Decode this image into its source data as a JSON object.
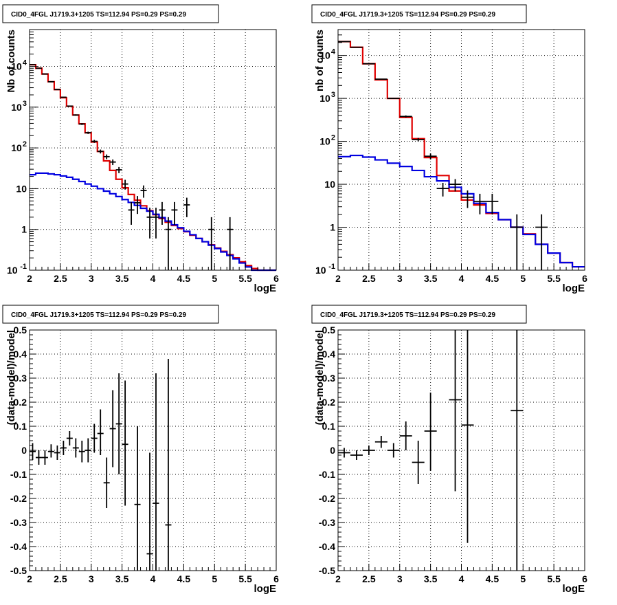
{
  "chart_data": [
    {
      "type": "line",
      "title": "CID0_4FGL J1719.3+1205 TS=112.94 PS=0.29 PS=0.29",
      "xlabel": "logE",
      "ylabel": "Nb of counts",
      "ylog": true,
      "xlim": [
        2,
        6
      ],
      "ylim": [
        0.1,
        80000
      ],
      "xticks": [
        "2",
        "2.5",
        "3",
        "3.5",
        "4",
        "4.5",
        "5",
        "5.5",
        "6"
      ],
      "yticks": [
        "10^-1",
        "1",
        "10",
        "10^2",
        "10^3",
        "10^4"
      ],
      "grid": true,
      "hist_edges": [
        2.0,
        2.1,
        2.2,
        2.3,
        2.4,
        2.5,
        2.6,
        2.7,
        2.8,
        2.9,
        3.0,
        3.1,
        3.2,
        3.3,
        3.4,
        3.5,
        3.6,
        3.7,
        3.8,
        3.9,
        4.0,
        4.1,
        4.2,
        4.3,
        4.4,
        4.5,
        4.6,
        4.7,
        4.8,
        4.9,
        5.0,
        5.1,
        5.2,
        5.3,
        5.4,
        5.5,
        5.6,
        5.7,
        5.8,
        5.9,
        6.0
      ],
      "series": [
        {
          "color": "#e00000",
          "values": [
            11000,
            9000,
            6500,
            4200,
            2700,
            1700,
            1050,
            640,
            390,
            235,
            140,
            82,
            48,
            28,
            17,
            10.5,
            7.2,
            5.2,
            3.8,
            2.9,
            2.3,
            1.85,
            1.5,
            1.25,
            1.05,
            0.88,
            0.72,
            0.6,
            0.5,
            0.42,
            0.35,
            0.29,
            0.24,
            0.2,
            0.16,
            0.13,
            0.11,
            0.1,
            0.1,
            0.1
          ]
        },
        {
          "color": "#0000e0",
          "values": [
            22,
            24,
            24,
            23,
            22,
            20.5,
            19,
            17,
            15,
            13,
            11.5,
            10,
            8.7,
            7.5,
            6.4,
            5.4,
            4.6,
            3.9,
            3.3,
            2.8,
            2.35,
            1.95,
            1.6,
            1.3,
            1.1,
            0.9,
            0.74,
            0.6,
            0.5,
            0.41,
            0.34,
            0.28,
            0.23,
            0.19,
            0.15,
            0.12,
            0.1,
            0.1,
            0.1,
            0.1
          ]
        }
      ],
      "points": [
        {
          "x": 2.05,
          "y": 11000,
          "ylo": 10900,
          "yhi": 11100
        },
        {
          "x": 2.15,
          "y": 9000,
          "ylo": 8900,
          "yhi": 9100
        },
        {
          "x": 2.25,
          "y": 6500,
          "ylo": 6400,
          "yhi": 6600
        },
        {
          "x": 2.35,
          "y": 4200,
          "ylo": 4130,
          "yhi": 4270
        },
        {
          "x": 2.45,
          "y": 2700,
          "ylo": 2650,
          "yhi": 2750
        },
        {
          "x": 2.55,
          "y": 1750,
          "ylo": 1710,
          "yhi": 1790
        },
        {
          "x": 2.65,
          "y": 1060,
          "ylo": 1030,
          "yhi": 1090
        },
        {
          "x": 2.75,
          "y": 640,
          "ylo": 615,
          "yhi": 665
        },
        {
          "x": 2.85,
          "y": 385,
          "ylo": 365,
          "yhi": 405
        },
        {
          "x": 2.95,
          "y": 235,
          "ylo": 220,
          "yhi": 250
        },
        {
          "x": 3.05,
          "y": 145,
          "ylo": 133,
          "yhi": 157
        },
        {
          "x": 3.15,
          "y": 82,
          "ylo": 73,
          "yhi": 91
        },
        {
          "x": 3.25,
          "y": 61,
          "ylo": 53,
          "yhi": 69
        },
        {
          "x": 3.35,
          "y": 45,
          "ylo": 38,
          "yhi": 52
        },
        {
          "x": 3.45,
          "y": 29,
          "ylo": 24,
          "yhi": 34
        },
        {
          "x": 3.55,
          "y": 13,
          "ylo": 9.5,
          "yhi": 16.5
        },
        {
          "x": 3.65,
          "y": 3,
          "ylo": 1.3,
          "yhi": 4.7
        },
        {
          "x": 3.75,
          "y": 4.5,
          "ylo": 2.4,
          "yhi": 6.6
        },
        {
          "x": 3.85,
          "y": 9,
          "ylo": 6,
          "yhi": 12
        },
        {
          "x": 3.95,
          "y": 2,
          "ylo": 0.6,
          "yhi": 3.4
        },
        {
          "x": 4.05,
          "y": 2,
          "ylo": 0.6,
          "yhi": 3.4
        },
        {
          "x": 4.15,
          "y": 3,
          "ylo": 1.3,
          "yhi": 4.7
        },
        {
          "x": 4.25,
          "y": 1,
          "ylo": 0.1,
          "yhi": 2
        },
        {
          "x": 4.35,
          "y": 3,
          "ylo": 1.3,
          "yhi": 4.7
        },
        {
          "x": 4.55,
          "y": 4,
          "ylo": 2,
          "yhi": 6
        },
        {
          "x": 4.95,
          "y": 1,
          "ylo": 0.1,
          "yhi": 2
        },
        {
          "x": 5.25,
          "y": 1,
          "ylo": 0.1,
          "yhi": 2
        }
      ]
    },
    {
      "type": "line",
      "title": "CID0_4FGL J1719.3+1205 TS=112.94 PS=0.29 PS=0.29",
      "xlabel": "logE",
      "ylabel": "nb of counts",
      "ylog": true,
      "xlim": [
        2,
        6
      ],
      "ylim": [
        0.1,
        40000
      ],
      "xticks": [
        "2",
        "2.5",
        "3",
        "3.5",
        "4",
        "4.5",
        "5",
        "5.5",
        "6"
      ],
      "yticks": [
        "10^-1",
        "1",
        "10",
        "10^2",
        "10^3",
        "10^4"
      ],
      "grid": true,
      "hist_edges": [
        2.0,
        2.2,
        2.4,
        2.6,
        2.8,
        3.0,
        3.2,
        3.4,
        3.6,
        3.8,
        4.0,
        4.2,
        4.4,
        4.6,
        4.8,
        5.0,
        5.2,
        5.4,
        5.6,
        5.8,
        6.0
      ],
      "series": [
        {
          "color": "#e00000",
          "values": [
            21000,
            15500,
            6400,
            2700,
            1000,
            360,
            115,
            42,
            16,
            7,
            4.3,
            3.3,
            2.1,
            1.5,
            1,
            0.7,
            0.4,
            0.25,
            0.15,
            0.12
          ]
        },
        {
          "color": "#0000e0",
          "values": [
            44,
            47,
            43,
            37,
            31,
            26,
            21,
            15,
            12,
            8.5,
            6,
            3.6,
            2.2,
            1.5,
            1,
            0.68,
            0.4,
            0.25,
            0.15,
            0.12
          ]
        }
      ],
      "points": [
        {
          "x": 2.1,
          "y": 21000,
          "ylo": 20860,
          "yhi": 21140
        },
        {
          "x": 2.3,
          "y": 15500,
          "ylo": 15380,
          "yhi": 15620
        },
        {
          "x": 2.5,
          "y": 6400,
          "ylo": 6320,
          "yhi": 6480
        },
        {
          "x": 2.7,
          "y": 2800,
          "ylo": 2750,
          "yhi": 2850
        },
        {
          "x": 2.9,
          "y": 1000,
          "ylo": 970,
          "yhi": 1030
        },
        {
          "x": 3.1,
          "y": 380,
          "ylo": 360,
          "yhi": 400
        },
        {
          "x": 3.3,
          "y": 110,
          "ylo": 100,
          "yhi": 120
        },
        {
          "x": 3.5,
          "y": 45,
          "ylo": 38,
          "yhi": 52
        },
        {
          "x": 3.7,
          "y": 8,
          "ylo": 5.2,
          "yhi": 10.8
        },
        {
          "x": 3.9,
          "y": 10,
          "ylo": 6.8,
          "yhi": 13.2
        },
        {
          "x": 4.1,
          "y": 5,
          "ylo": 2.8,
          "yhi": 7.2
        },
        {
          "x": 4.3,
          "y": 4,
          "ylo": 2,
          "yhi": 6
        },
        {
          "x": 4.5,
          "y": 4,
          "ylo": 2,
          "yhi": 6
        },
        {
          "x": 4.9,
          "y": 1,
          "ylo": 0.1,
          "yhi": 2
        },
        {
          "x": 5.3,
          "y": 1,
          "ylo": 0.1,
          "yhi": 2
        }
      ]
    },
    {
      "type": "scatter",
      "title": "CID0_4FGL J1719.3+1205 TS=112.94 PS=0.29 PS=0.29",
      "xlabel": "logE",
      "ylabel": "(data-model)/model",
      "ylog": false,
      "xlim": [
        2,
        6
      ],
      "ylim": [
        -0.5,
        0.5
      ],
      "xticks": [
        "2",
        "2.5",
        "3",
        "3.5",
        "4",
        "4.5",
        "5",
        "5.5",
        "6"
      ],
      "yticks": [
        "-0.5",
        "-0.4",
        "-0.3",
        "-0.2",
        "-0.1",
        "0",
        "0.1",
        "0.2",
        "0.3",
        "0.4",
        "0.5"
      ],
      "grid": true,
      "points": [
        {
          "x": 2.05,
          "y": -0.005,
          "ylo": -0.04,
          "yhi": 0.03
        },
        {
          "x": 2.15,
          "y": -0.03,
          "ylo": -0.06,
          "yhi": 0.0
        },
        {
          "x": 2.25,
          "y": -0.03,
          "ylo": -0.06,
          "yhi": 0.0
        },
        {
          "x": 2.35,
          "y": -0.005,
          "ylo": -0.03,
          "yhi": 0.025
        },
        {
          "x": 2.45,
          "y": -0.01,
          "ylo": -0.04,
          "yhi": 0.02
        },
        {
          "x": 2.55,
          "y": 0.01,
          "ylo": -0.02,
          "yhi": 0.04
        },
        {
          "x": 2.65,
          "y": 0.05,
          "ylo": 0.02,
          "yhi": 0.08
        },
        {
          "x": 2.75,
          "y": 0.01,
          "ylo": -0.03,
          "yhi": 0.05
        },
        {
          "x": 2.85,
          "y": -0.005,
          "ylo": -0.05,
          "yhi": 0.04
        },
        {
          "x": 2.95,
          "y": 0.0,
          "ylo": -0.05,
          "yhi": 0.05
        },
        {
          "x": 3.05,
          "y": 0.05,
          "ylo": -0.01,
          "yhi": 0.11
        },
        {
          "x": 3.15,
          "y": 0.07,
          "ylo": -0.02,
          "yhi": 0.17
        },
        {
          "x": 3.25,
          "y": -0.135,
          "ylo": -0.24,
          "yhi": -0.03
        },
        {
          "x": 3.35,
          "y": 0.09,
          "ylo": -0.07,
          "yhi": 0.25
        },
        {
          "x": 3.45,
          "y": 0.11,
          "ylo": -0.1,
          "yhi": 0.32
        },
        {
          "x": 3.55,
          "y": 0.025,
          "ylo": -0.23,
          "yhi": 0.29
        },
        {
          "x": 3.75,
          "y": -0.225,
          "ylo": -0.5,
          "yhi": 0.1
        },
        {
          "x": 3.95,
          "y": -0.43,
          "ylo": -0.5,
          "yhi": -0.01
        },
        {
          "x": 4.05,
          "y": -0.22,
          "ylo": -0.5,
          "yhi": 0.32
        },
        {
          "x": 4.25,
          "y": -0.31,
          "ylo": -0.5,
          "yhi": 0.38
        }
      ]
    },
    {
      "type": "scatter",
      "title": "CID0_4FGL J1719.3+1205 TS=112.94 PS=0.29 PS=0.29",
      "xlabel": "logE",
      "ylabel": "(data-model)/model",
      "ylog": false,
      "xlim": [
        2,
        6
      ],
      "ylim": [
        -0.5,
        0.5
      ],
      "xticks": [
        "2",
        "2.5",
        "3",
        "3.5",
        "4",
        "4.5",
        "5",
        "5.5",
        "6"
      ],
      "yticks": [
        "-0.5",
        "-0.4",
        "-0.3",
        "-0.2",
        "-0.1",
        "0",
        "0.1",
        "0.2",
        "0.3",
        "0.4",
        "0.5"
      ],
      "grid": true,
      "points": [
        {
          "x": 2.1,
          "y": -0.01,
          "ylo": -0.03,
          "yhi": 0.01
        },
        {
          "x": 2.3,
          "y": -0.02,
          "ylo": -0.04,
          "yhi": 0.0
        },
        {
          "x": 2.5,
          "y": 0.0,
          "ylo": -0.02,
          "yhi": 0.02
        },
        {
          "x": 2.7,
          "y": 0.035,
          "ylo": 0.01,
          "yhi": 0.06
        },
        {
          "x": 2.9,
          "y": 0.0,
          "ylo": -0.03,
          "yhi": 0.03
        },
        {
          "x": 3.1,
          "y": 0.06,
          "ylo": 0.0,
          "yhi": 0.12
        },
        {
          "x": 3.3,
          "y": -0.05,
          "ylo": -0.14,
          "yhi": 0.04
        },
        {
          "x": 3.5,
          "y": 0.08,
          "ylo": -0.085,
          "yhi": 0.24
        },
        {
          "x": 3.9,
          "y": 0.21,
          "ylo": -0.17,
          "yhi": 0.5
        },
        {
          "x": 4.1,
          "y": 0.105,
          "ylo": -0.385,
          "yhi": 0.5
        },
        {
          "x": 4.9,
          "y": 0.165,
          "ylo": -0.5,
          "yhi": 0.5
        }
      ]
    }
  ]
}
